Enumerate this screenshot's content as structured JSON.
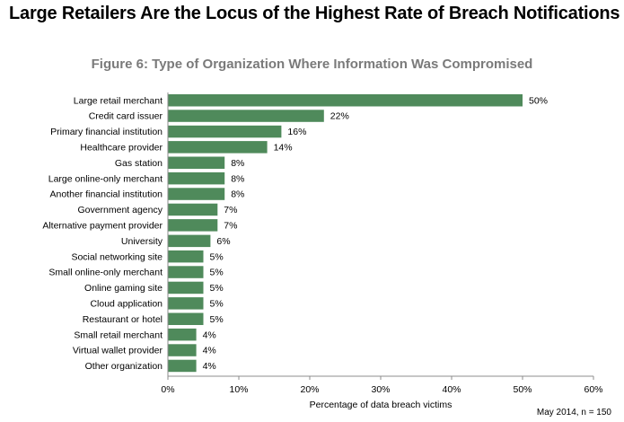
{
  "headline": "Large Retailers Are the Locus of the Highest Rate of Breach Notifications",
  "footnote": "May 2014, n = 150",
  "chart_data": {
    "type": "bar",
    "orientation": "horizontal",
    "title": "Figure 6: Type of Organization Where Information Was Compromised",
    "xlabel": "Percentage of data breach victims",
    "ylabel": "",
    "xlim": [
      0,
      60
    ],
    "xticks": [
      "0%",
      "10%",
      "20%",
      "30%",
      "40%",
      "50%",
      "60%"
    ],
    "bar_color": "#4f8a5b",
    "grid": false,
    "categories": [
      "Large retail merchant",
      "Credit card issuer",
      "Primary financial institution",
      "Healthcare provider",
      "Gas station",
      "Large online-only merchant",
      "Another financial institution",
      "Government agency",
      "Alternative payment provider",
      "University",
      "Social networking site",
      "Small online-only merchant",
      "Online gaming site",
      "Cloud application",
      "Restaurant or hotel",
      "Small retail merchant",
      "Virtual wallet provider",
      "Other organization"
    ],
    "values": [
      50,
      22,
      16,
      14,
      8,
      8,
      8,
      7,
      7,
      6,
      5,
      5,
      5,
      5,
      5,
      4,
      4,
      4
    ],
    "value_labels": [
      "50%",
      "22%",
      "16%",
      "14%",
      "8%",
      "8%",
      "8%",
      "7%",
      "7%",
      "6%",
      "5%",
      "5%",
      "5%",
      "5%",
      "5%",
      "4%",
      "4%",
      "4%"
    ]
  }
}
